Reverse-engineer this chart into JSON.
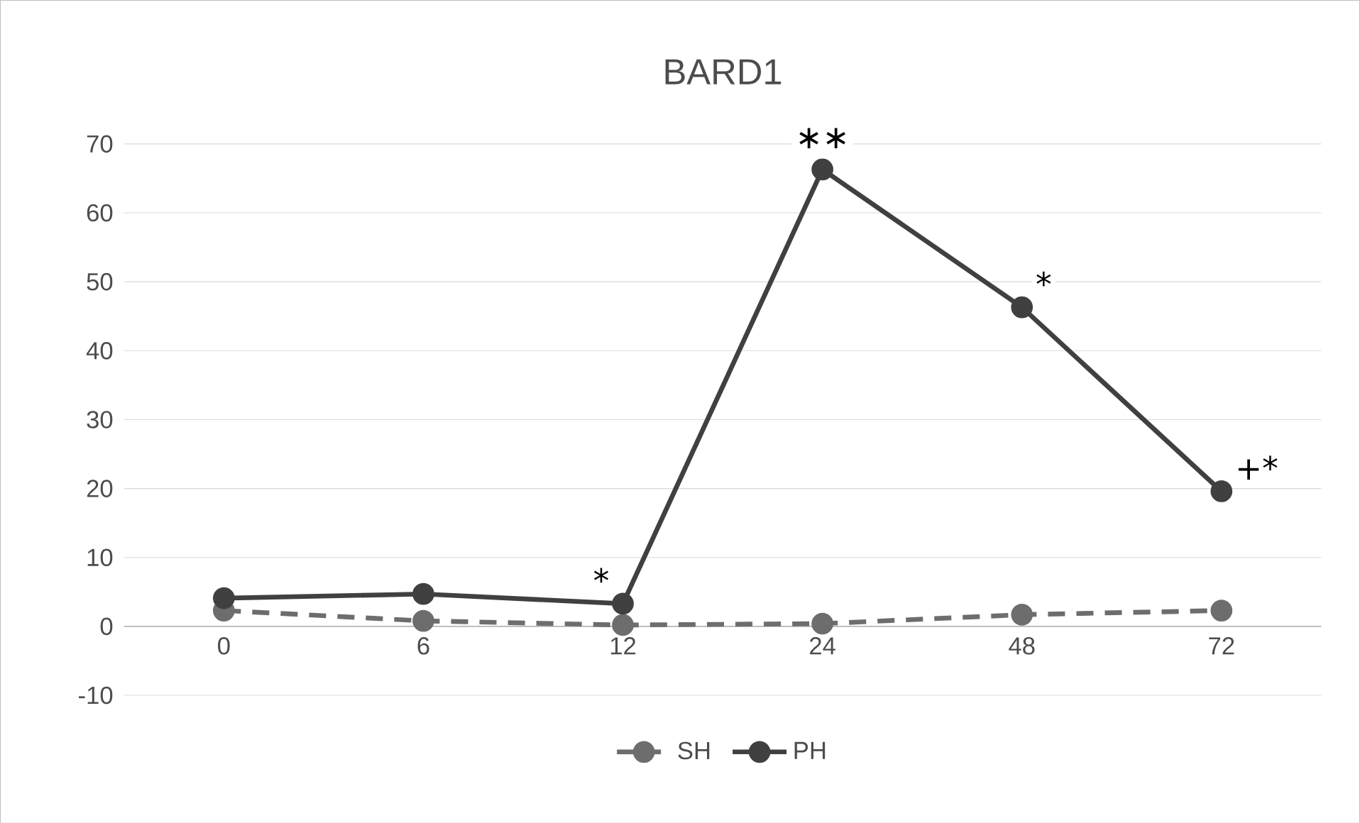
{
  "chart_data": {
    "type": "line",
    "title": "BARD1",
    "categories": [
      "0",
      "6",
      "12",
      "24",
      "48",
      "72"
    ],
    "series": [
      {
        "name": "SH",
        "color": "#6d6d6d",
        "line_style": "dashed",
        "values": [
          2.3,
          0.8,
          0.2,
          0.4,
          1.7,
          2.3
        ]
      },
      {
        "name": "PH",
        "color": "#404040",
        "line_style": "solid",
        "values": [
          4.1,
          4.7,
          3.3,
          66.3,
          46.3,
          19.6
        ]
      }
    ],
    "ylim": [
      -10,
      70
    ],
    "yticks": [
      -10,
      0,
      10,
      20,
      30,
      40,
      50,
      60,
      70
    ],
    "grid": "y",
    "legend": "bottom",
    "marker": "circle",
    "annotations": [
      {
        "text": "*",
        "x": "12",
        "y": 3.3
      },
      {
        "text": "∗∗",
        "x": "24",
        "y": 66.3
      },
      {
        "text": "*",
        "x": "48",
        "y": 46.3
      },
      {
        "text": "+*",
        "x": "72",
        "y": 19.6
      }
    ]
  }
}
